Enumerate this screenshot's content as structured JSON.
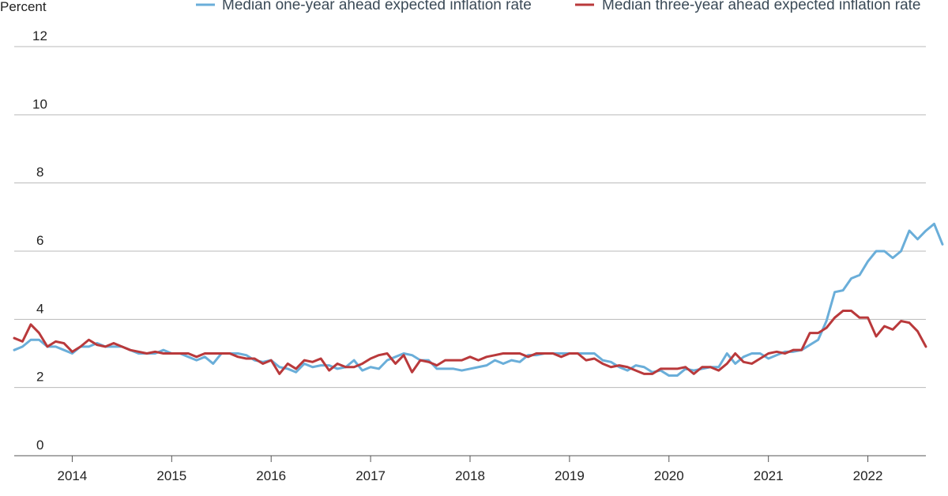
{
  "chart_data": {
    "type": "line",
    "title": "",
    "ylabel": "Percent",
    "xlabel": "",
    "ylim": [
      0,
      12
    ],
    "yticks": [
      "0",
      "2",
      "4",
      "6",
      "8",
      "10",
      "12"
    ],
    "xlim": [
      2013.4167,
      2022.5833
    ],
    "xticks": [
      "2014",
      "2015",
      "2016",
      "2017",
      "2018",
      "2019",
      "2020",
      "2021",
      "2022"
    ],
    "grid": "horizontal",
    "legend_position": "top",
    "x_start": "2013-06",
    "x_step": "month",
    "series": [
      {
        "name": "Median one-year ahead expected inflation rate",
        "color": "#6aaed9",
        "values": [
          3.1,
          3.2,
          3.4,
          3.4,
          3.2,
          3.2,
          3.1,
          3.0,
          3.2,
          3.2,
          3.3,
          3.2,
          3.2,
          3.2,
          3.1,
          3.0,
          3.0,
          3.0,
          3.1,
          3.0,
          3.0,
          2.9,
          2.8,
          2.9,
          2.7,
          3.0,
          3.0,
          3.0,
          2.95,
          2.8,
          2.75,
          2.8,
          2.6,
          2.55,
          2.45,
          2.7,
          2.6,
          2.65,
          2.65,
          2.55,
          2.6,
          2.8,
          2.5,
          2.6,
          2.55,
          2.8,
          2.9,
          3.0,
          2.95,
          2.8,
          2.8,
          2.55,
          2.55,
          2.55,
          2.5,
          2.55,
          2.6,
          2.65,
          2.8,
          2.7,
          2.8,
          2.75,
          2.95,
          2.95,
          3.0,
          3.0,
          3.0,
          3.0,
          3.0,
          3.0,
          3.0,
          2.8,
          2.75,
          2.6,
          2.5,
          2.65,
          2.6,
          2.45,
          2.5,
          2.35,
          2.35,
          2.55,
          2.5,
          2.55,
          2.6,
          2.6,
          3.0,
          2.7,
          2.9,
          3.0,
          3.0,
          2.85,
          2.95,
          3.05,
          3.05,
          3.1,
          3.25,
          3.4,
          3.95,
          4.8,
          4.85,
          5.2,
          5.3,
          5.7,
          6.0,
          6.0,
          5.8,
          6.0,
          6.6,
          6.35,
          6.6,
          6.8,
          6.2
        ]
      },
      {
        "name": "Median three-year ahead expected inflation rate",
        "color": "#b9393b",
        "values": [
          3.45,
          3.35,
          3.85,
          3.6,
          3.2,
          3.35,
          3.3,
          3.05,
          3.2,
          3.4,
          3.25,
          3.2,
          3.3,
          3.2,
          3.1,
          3.05,
          3.0,
          3.05,
          3.0,
          3.0,
          3.0,
          3.0,
          2.9,
          3.0,
          3.0,
          3.0,
          3.0,
          2.9,
          2.85,
          2.85,
          2.7,
          2.8,
          2.4,
          2.7,
          2.55,
          2.8,
          2.75,
          2.85,
          2.5,
          2.7,
          2.6,
          2.6,
          2.7,
          2.85,
          2.95,
          3.0,
          2.7,
          2.95,
          2.45,
          2.8,
          2.75,
          2.65,
          2.8,
          2.8,
          2.8,
          2.9,
          2.8,
          2.9,
          2.95,
          3.0,
          3.0,
          3.0,
          2.9,
          3.0,
          3.0,
          3.0,
          2.9,
          3.0,
          3.0,
          2.8,
          2.85,
          2.7,
          2.6,
          2.65,
          2.6,
          2.5,
          2.4,
          2.4,
          2.55,
          2.55,
          2.55,
          2.6,
          2.4,
          2.6,
          2.6,
          2.5,
          2.7,
          3.0,
          2.75,
          2.7,
          2.85,
          3.0,
          3.05,
          3.0,
          3.1,
          3.1,
          3.6,
          3.6,
          3.75,
          4.05,
          4.25,
          4.25,
          4.05,
          4.05,
          3.5,
          3.8,
          3.7,
          3.95,
          3.9,
          3.65,
          3.2
        ]
      }
    ]
  }
}
